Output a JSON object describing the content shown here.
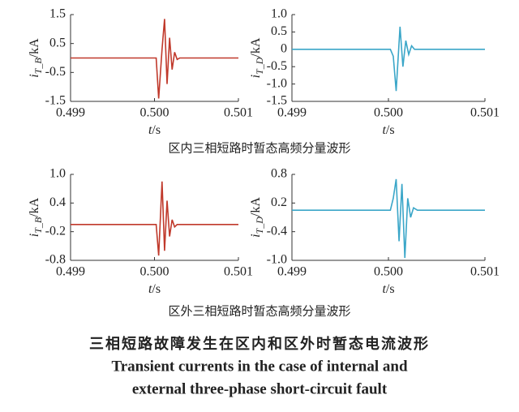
{
  "chart_data": [
    {
      "type": "line",
      "color": "#c0392b",
      "ylabel": {
        "symbol": "i",
        "subscript": "T_B",
        "unit": "/kA"
      },
      "xlabel": {
        "symbol": "t",
        "unit": "/s"
      },
      "x": [
        0.499,
        0.50002,
        0.50005,
        0.50009,
        0.50012,
        0.50015,
        0.50018,
        0.50021,
        0.50024,
        0.50027,
        0.5003,
        0.501
      ],
      "values": [
        0,
        0,
        -1.4,
        0.3,
        1.35,
        -0.9,
        0.7,
        -0.4,
        0.2,
        -0.05,
        0,
        0
      ],
      "xlim": [
        0.499,
        0.501
      ],
      "xticks": [
        0.499,
        {
          "value": 0.5,
          "label": "0.500"
        },
        0.501
      ],
      "ylim": [
        -1.5,
        1.5
      ],
      "yticks": [
        -1.5,
        -0.5,
        0.5,
        1.5
      ]
    },
    {
      "type": "line",
      "color": "#3aa6c8",
      "ylabel": {
        "symbol": "i",
        "subscript": "T_D",
        "unit": "/kA"
      },
      "xlabel": {
        "symbol": "t",
        "unit": "/s"
      },
      "x": [
        0.499,
        0.50002,
        0.50005,
        0.50008,
        0.50012,
        0.50015,
        0.50018,
        0.50021,
        0.50024,
        0.50027,
        0.5003,
        0.501
      ],
      "values": [
        0,
        0,
        -0.2,
        -1.2,
        0.65,
        -0.5,
        0.25,
        -0.15,
        0.1,
        0,
        0,
        0
      ],
      "xlim": [
        0.499,
        0.501
      ],
      "xticks": [
        0.499,
        {
          "value": 0.5,
          "label": "0.500"
        },
        0.501
      ],
      "ylim": [
        -1.5,
        1.0
      ],
      "yticks": [
        -1.5,
        {
          "value": -1.0,
          "label": "-1.0"
        },
        -0.5,
        0,
        0.5,
        {
          "value": 1.0,
          "label": "1.0"
        }
      ]
    },
    {
      "type": "line",
      "color": "#c0392b",
      "ylabel": {
        "symbol": "i",
        "subscript": "T_B",
        "unit": "/kA"
      },
      "xlabel": {
        "symbol": "t",
        "unit": "/s"
      },
      "x": [
        0.499,
        0.50002,
        0.50005,
        0.50009,
        0.50012,
        0.50015,
        0.50018,
        0.50021,
        0.50024,
        0.50027,
        0.5003,
        0.501
      ],
      "values": [
        -0.05,
        -0.05,
        -0.7,
        0.85,
        -0.6,
        0.45,
        -0.3,
        0.05,
        -0.1,
        -0.05,
        -0.05,
        -0.05
      ],
      "xlim": [
        0.499,
        0.501
      ],
      "xticks": [
        0.499,
        {
          "value": 0.5,
          "label": "0.500"
        },
        0.501
      ],
      "ylim": [
        -0.8,
        1.0
      ],
      "yticks": [
        -0.8,
        -0.2,
        0.4,
        {
          "value": 1.0,
          "label": "1.0"
        }
      ]
    },
    {
      "type": "line",
      "color": "#3aa6c8",
      "ylabel": {
        "symbol": "i",
        "subscript": "T_D",
        "unit": "/kA"
      },
      "xlabel": {
        "symbol": "t",
        "unit": "/s"
      },
      "x": [
        0.499,
        0.50002,
        0.50005,
        0.50008,
        0.50011,
        0.50014,
        0.50017,
        0.5002,
        0.50023,
        0.50026,
        0.5003,
        0.501
      ],
      "values": [
        0.05,
        0.05,
        0.3,
        0.7,
        -0.6,
        0.6,
        -0.95,
        0.3,
        -0.1,
        0.1,
        0.05,
        0.05
      ],
      "xlim": [
        0.499,
        0.501
      ],
      "xticks": [
        0.499,
        {
          "value": 0.5,
          "label": "0.500"
        },
        0.501
      ],
      "ylim": [
        -1.0,
        0.8
      ],
      "yticks": [
        {
          "value": -1.0,
          "label": "-1.0"
        },
        -0.4,
        0.2,
        0.8
      ]
    }
  ],
  "captions": [
    "区内三相短路时暂态高频分量波形",
    "区外三相短路时暂态高频分量波形"
  ],
  "figure_title": "三相短路故障发生在区内和区外时暂态电流波形",
  "figure_title_en": [
    "Transient currents in the case of internal and",
    "external three-phase short-circuit fault"
  ]
}
